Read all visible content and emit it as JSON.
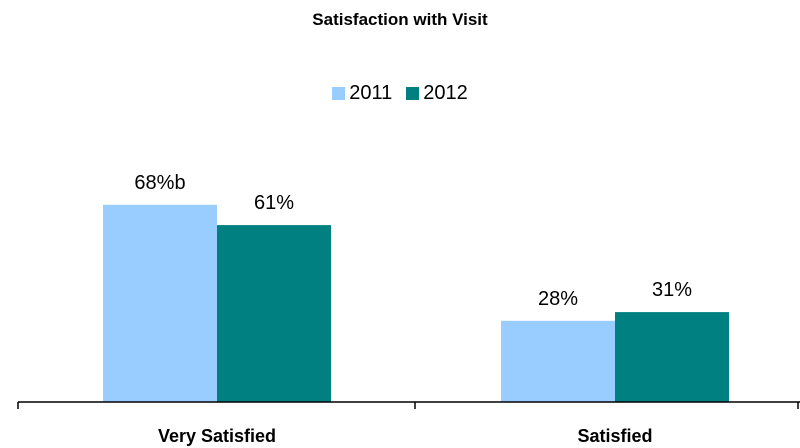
{
  "chart_data": {
    "type": "bar",
    "title": "Satisfaction with Visit",
    "categories": [
      "Very Satisfied",
      "Satisfied"
    ],
    "series": [
      {
        "name": "2011",
        "color": "#99CCFF",
        "values": [
          68,
          28
        ],
        "labels": [
          "68%b",
          "28%"
        ]
      },
      {
        "name": "2012",
        "color": "#008080",
        "values": [
          61,
          31
        ],
        "labels": [
          "61%",
          "31%"
        ]
      }
    ],
    "ylim": [
      0,
      100
    ],
    "xlabel": "",
    "ylabel": "",
    "grid": false,
    "legend_position": "top"
  }
}
